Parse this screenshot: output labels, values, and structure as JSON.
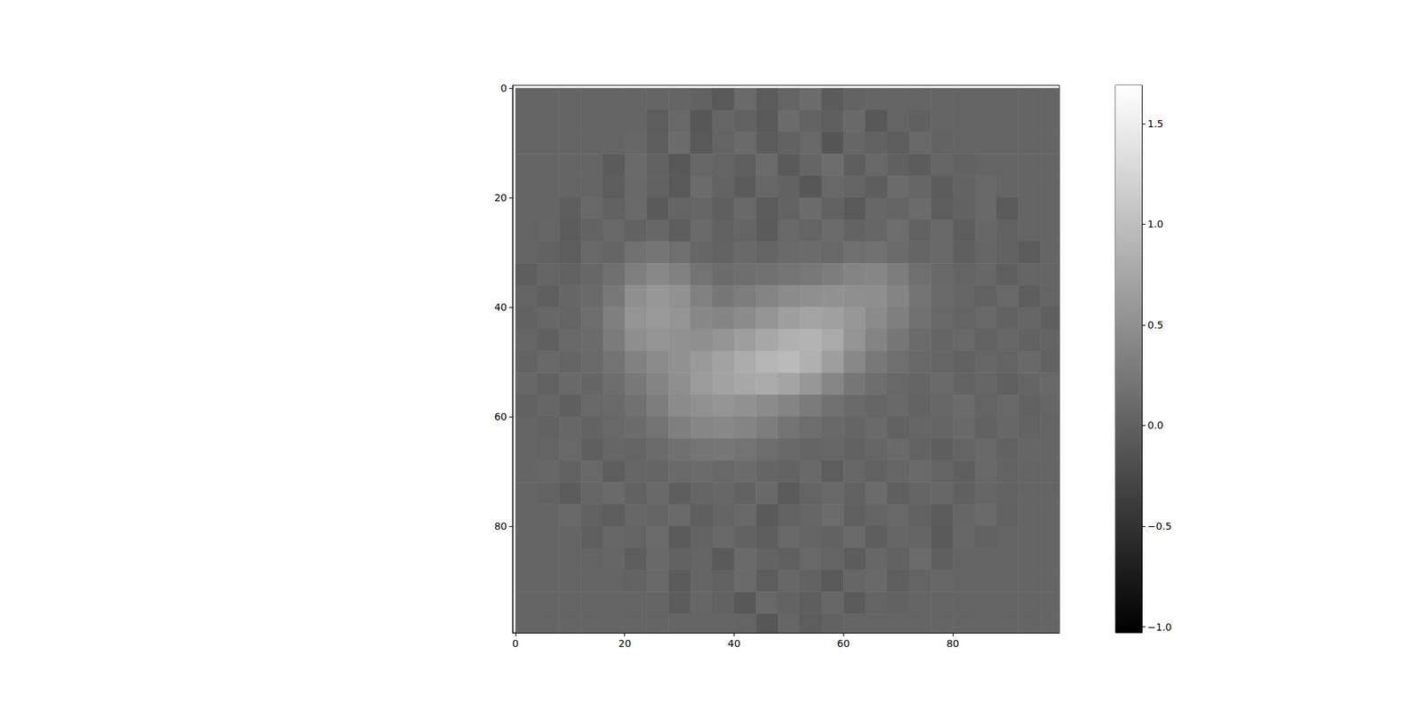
{
  "chart_data": {
    "type": "heatmap",
    "x": [
      2,
      6,
      10,
      14,
      18,
      22,
      26,
      30,
      34,
      38,
      42,
      46,
      50,
      54,
      58,
      62,
      66,
      70,
      74,
      78,
      82,
      86,
      90,
      94,
      98
    ],
    "y": [
      2,
      6,
      10,
      14,
      18,
      22,
      26,
      30,
      34,
      38,
      42,
      46,
      50,
      54,
      58,
      62,
      66,
      70,
      74,
      78,
      82,
      86,
      90,
      94,
      98
    ],
    "z": [
      [
        0.05,
        0.05,
        0.05,
        0.05,
        0.05,
        0.05,
        0.05,
        0.05,
        0.02,
        -0.08,
        0.1,
        -0.05,
        0.04,
        0.12,
        -0.06,
        0.03,
        0.05,
        0.05,
        0.05,
        0.05,
        0.05,
        0.05,
        0.05,
        0.05,
        0.05
      ],
      [
        0.05,
        0.05,
        0.05,
        0.05,
        0.05,
        0.05,
        -0.04,
        0.08,
        -0.1,
        0.06,
        0.01,
        -0.07,
        0.11,
        0.03,
        -0.02,
        0.09,
        -0.09,
        0.05,
        0.0,
        0.05,
        0.05,
        0.05,
        0.05,
        0.05,
        0.05
      ],
      [
        0.05,
        0.05,
        0.05,
        0.05,
        0.05,
        0.07,
        -0.03,
        0.12,
        -0.08,
        0.04,
        0.1,
        -0.05,
        0.02,
        0.08,
        -0.11,
        0.06,
        0.01,
        -0.04,
        0.09,
        0.03,
        0.05,
        0.05,
        0.05,
        0.05,
        0.05
      ],
      [
        0.05,
        0.05,
        0.05,
        0.05,
        -0.06,
        0.1,
        0.02,
        -0.09,
        0.07,
        0.04,
        -0.02,
        0.11,
        -0.07,
        0.05,
        0.13,
        -0.03,
        0.08,
        0.0,
        -0.05,
        0.06,
        0.02,
        0.05,
        0.05,
        0.05,
        0.05
      ],
      [
        0.05,
        0.05,
        0.05,
        0.05,
        -0.04,
        0.09,
        0.01,
        -0.08,
        0.12,
        0.03,
        -0.06,
        0.07,
        0.02,
        -0.1,
        0.08,
        0.04,
        -0.03,
        0.11,
        0.06,
        -0.05,
        0.03,
        0.09,
        0.05,
        0.05,
        0.05
      ],
      [
        0.05,
        0.05,
        -0.03,
        0.08,
        0.02,
        0.1,
        -0.07,
        0.04,
        0.06,
        -0.02,
        0.09,
        -0.05,
        0.03,
        0.12,
        0.01,
        -0.08,
        0.07,
        0.05,
        0.11,
        -0.04,
        0.02,
        0.08,
        -0.06,
        0.05,
        0.05
      ],
      [
        0.05,
        0.06,
        -0.05,
        0.03,
        0.09,
        0.02,
        0.07,
        -0.04,
        0.1,
        0.01,
        0.05,
        -0.06,
        0.08,
        0.04,
        0.11,
        0.03,
        0.06,
        0.14,
        0.02,
        0.09,
        -0.03,
        0.07,
        0.01,
        0.05,
        0.05
      ],
      [
        0.05,
        0.02,
        -0.04,
        0.08,
        0.05,
        0.18,
        0.22,
        0.15,
        0.06,
        0.03,
        0.09,
        0.04,
        0.1,
        0.12,
        0.08,
        0.15,
        0.18,
        0.11,
        0.05,
        0.08,
        -0.02,
        0.06,
        0.01,
        -0.05,
        0.05
      ],
      [
        -0.03,
        0.05,
        0.02,
        0.07,
        0.15,
        0.32,
        0.42,
        0.35,
        0.2,
        0.12,
        0.14,
        0.18,
        0.22,
        0.25,
        0.3,
        0.38,
        0.4,
        0.3,
        0.15,
        0.09,
        0.04,
        0.07,
        -0.02,
        0.05,
        0.05
      ],
      [
        0.04,
        -0.02,
        0.06,
        0.1,
        0.25,
        0.5,
        0.58,
        0.52,
        0.35,
        0.24,
        0.3,
        0.38,
        0.45,
        0.5,
        0.52,
        0.5,
        0.48,
        0.38,
        0.2,
        0.1,
        0.06,
        0.02,
        0.08,
        -0.03,
        0.05
      ],
      [
        0.01,
        0.07,
        0.05,
        0.14,
        0.32,
        0.55,
        0.6,
        0.55,
        0.42,
        0.38,
        0.45,
        0.55,
        0.65,
        0.72,
        0.68,
        0.58,
        0.45,
        0.32,
        0.18,
        0.08,
        0.04,
        0.09,
        0.01,
        0.06,
        -0.02
      ],
      [
        0.06,
        -0.01,
        0.08,
        0.12,
        0.28,
        0.48,
        0.55,
        0.52,
        0.5,
        0.55,
        0.65,
        0.75,
        0.85,
        0.88,
        0.78,
        0.55,
        0.38,
        0.24,
        0.12,
        0.05,
        0.08,
        0.03,
        0.07,
        0.02,
        0.04
      ],
      [
        0.03,
        0.08,
        0.04,
        0.1,
        0.2,
        0.35,
        0.45,
        0.52,
        0.6,
        0.7,
        0.8,
        0.9,
        0.95,
        0.85,
        0.65,
        0.42,
        0.25,
        0.15,
        0.08,
        0.06,
        0.02,
        0.07,
        0.04,
        0.09,
        0.01
      ],
      [
        0.07,
        0.02,
        0.09,
        0.05,
        0.14,
        0.25,
        0.38,
        0.5,
        0.62,
        0.7,
        0.75,
        0.78,
        0.72,
        0.58,
        0.4,
        0.24,
        0.14,
        0.08,
        0.05,
        0.1,
        0.03,
        0.06,
        -0.01,
        0.05,
        0.08
      ],
      [
        0.02,
        0.06,
        -0.02,
        0.08,
        0.1,
        0.18,
        0.3,
        0.45,
        0.52,
        0.55,
        0.52,
        0.45,
        0.38,
        0.28,
        0.18,
        0.1,
        0.06,
        0.09,
        0.03,
        0.07,
        0.12,
        0.04,
        0.08,
        0.02,
        0.06
      ],
      [
        0.05,
        0.01,
        0.07,
        0.03,
        0.08,
        0.12,
        0.2,
        0.32,
        0.4,
        0.42,
        0.38,
        0.3,
        0.2,
        0.14,
        0.08,
        0.05,
        0.1,
        0.02,
        0.06,
        0.04,
        0.09,
        0.01,
        0.07,
        0.03,
        0.05
      ],
      [
        0.05,
        0.04,
        0.08,
        -0.02,
        0.06,
        0.05,
        0.11,
        0.16,
        0.22,
        0.24,
        0.2,
        0.14,
        0.09,
        0.05,
        0.07,
        0.02,
        0.06,
        0.1,
        0.03,
        -0.03,
        0.05,
        0.08,
        0.01,
        0.06,
        0.05
      ],
      [
        0.05,
        0.07,
        0.02,
        0.09,
        -0.03,
        0.06,
        0.04,
        0.1,
        0.12,
        0.08,
        0.11,
        0.05,
        0.03,
        0.09,
        -0.04,
        0.07,
        0.02,
        0.06,
        0.1,
        0.04,
        -0.02,
        0.08,
        0.03,
        0.05,
        0.05
      ],
      [
        0.05,
        0.03,
        -0.05,
        0.06,
        0.1,
        0.02,
        0.08,
        -0.03,
        0.05,
        0.07,
        0.01,
        0.09,
        -0.06,
        0.04,
        0.08,
        0.02,
        0.11,
        -0.02,
        0.05,
        0.07,
        0.0,
        0.06,
        0.03,
        0.05,
        0.05
      ],
      [
        0.05,
        0.05,
        0.08,
        0.02,
        -0.04,
        0.07,
        0.05,
        0.1,
        -0.02,
        0.04,
        0.09,
        -0.07,
        0.03,
        0.06,
        0.12,
        -0.01,
        0.05,
        0.08,
        0.02,
        -0.05,
        0.06,
        0.1,
        0.01,
        0.05,
        0.05
      ],
      [
        0.05,
        0.05,
        0.05,
        -0.02,
        0.07,
        0.04,
        0.11,
        -0.06,
        0.03,
        0.08,
        0.01,
        -0.04,
        0.09,
        0.05,
        0.02,
        0.1,
        -0.03,
        0.06,
        0.04,
        -0.08,
        0.07,
        0.02,
        0.05,
        0.05,
        0.05
      ],
      [
        0.05,
        0.05,
        0.05,
        0.05,
        0.06,
        -0.03,
        0.09,
        0.02,
        0.05,
        -0.07,
        0.1,
        0.03,
        -0.01,
        0.08,
        0.04,
        -0.05,
        0.07,
        0.01,
        0.11,
        -0.02,
        0.05,
        0.05,
        0.05,
        0.05,
        0.05
      ],
      [
        0.05,
        0.05,
        0.05,
        0.05,
        0.05,
        0.03,
        0.08,
        -0.06,
        0.05,
        0.01,
        0.1,
        -0.04,
        0.07,
        0.02,
        -0.08,
        0.06,
        0.09,
        -0.02,
        0.04,
        0.07,
        0.05,
        0.05,
        0.05,
        0.05,
        0.05
      ],
      [
        0.05,
        0.05,
        0.05,
        0.05,
        0.05,
        0.05,
        0.05,
        -0.05,
        0.06,
        0.02,
        -0.09,
        0.08,
        0.03,
        -0.03,
        0.07,
        -0.06,
        0.04,
        0.01,
        0.05,
        0.05,
        0.05,
        0.05,
        0.05,
        0.05,
        0.05
      ],
      [
        0.05,
        0.05,
        0.05,
        0.05,
        0.05,
        0.05,
        0.05,
        0.05,
        0.05,
        0.05,
        0.04,
        -0.1,
        0.06,
        -0.04,
        0.02,
        0.05,
        0.05,
        0.05,
        0.05,
        0.05,
        0.05,
        0.05,
        0.05,
        0.05,
        0.05
      ]
    ],
    "xlim": [
      -0.5,
      99.5
    ],
    "ylim": [
      99.5,
      -0.5
    ],
    "xticks": [
      0,
      20,
      40,
      60,
      80
    ],
    "yticks": [
      0,
      20,
      40,
      60,
      80
    ],
    "color": "gray",
    "colorbar": {
      "range": [
        -1.03,
        1.69
      ],
      "ticks": [
        {
          "value": -1,
          "label": "−1.0"
        },
        {
          "value": -0.5,
          "label": "−0.5"
        },
        {
          "value": 0,
          "label": "0.0"
        },
        {
          "value": 0.5,
          "label": "0.5"
        },
        {
          "value": 1,
          "label": "1.0"
        },
        {
          "value": 1.5,
          "label": "1.5"
        }
      ]
    }
  }
}
